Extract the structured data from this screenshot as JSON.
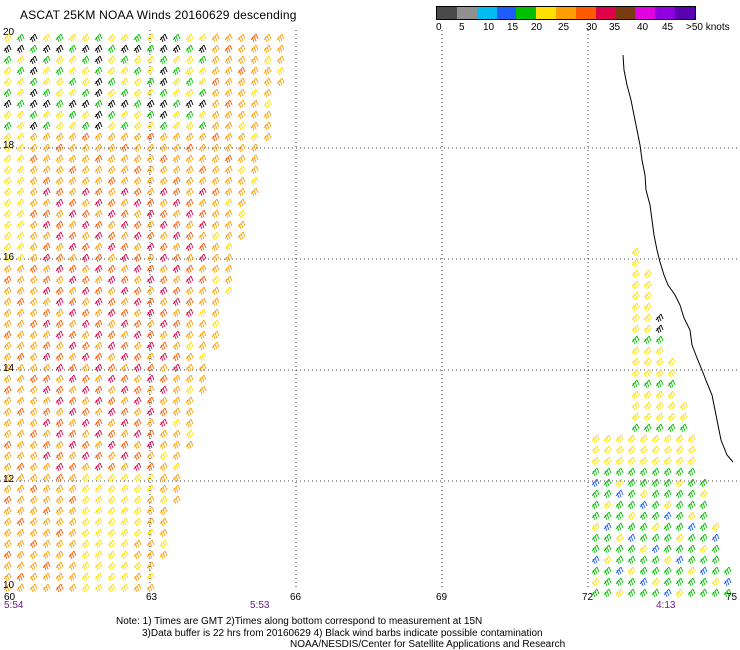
{
  "title": "ASCAT 25KM NOAA Winds 20160629 descending",
  "colorbar": {
    "colors": [
      "#4a4a4a",
      "#909090",
      "#00bcf2",
      "#1f5cff",
      "#00c000",
      "#ffe000",
      "#ff9e00",
      "#ff5a00",
      "#e0004a",
      "#7a3b10",
      "#e000e0",
      "#9000e0",
      "#5a00b0"
    ],
    "labels": [
      "0",
      "5",
      "10",
      "15",
      "20",
      "25",
      "30",
      "35",
      "40",
      "45",
      ">50 knots"
    ]
  },
  "lat_labels": [
    "20",
    "18",
    "16",
    "14",
    "12",
    "10"
  ],
  "lon_labels": [
    "60",
    "63",
    "66",
    "69",
    "72",
    "75"
  ],
  "time_labels": [
    "5:54",
    "5:53",
    "4:13"
  ],
  "notes": [
    "Note:  1) Times are GMT 2)Times along bottom correspond to measurement at 15N",
    "3)Data buffer is 22 hrs from 20160629 4) Black wind barbs indicate possible contamination",
    "NOAA/NESDIS/Center for Satellite Applications and Research"
  ]
}
